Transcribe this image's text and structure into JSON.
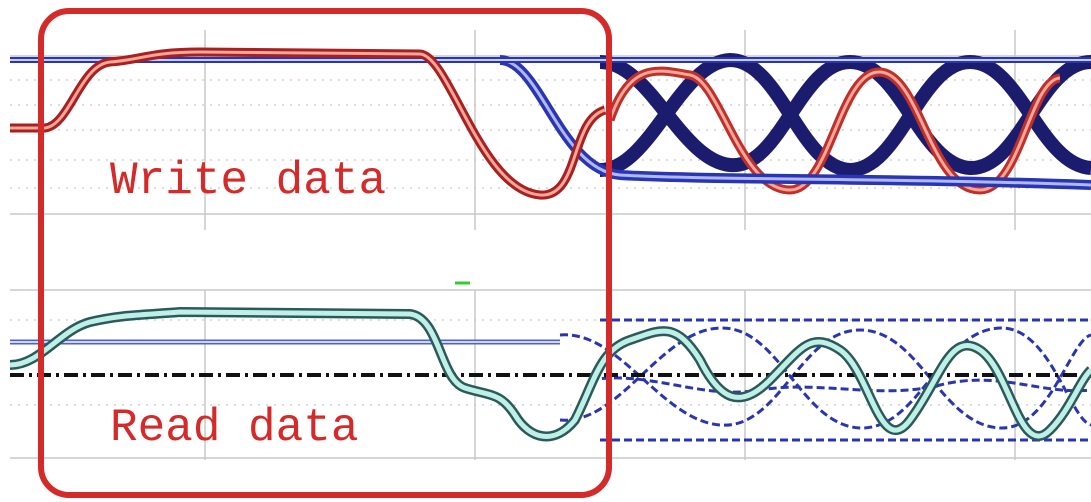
{
  "labels": {
    "write": "Write data",
    "read": "Read data"
  }
}
